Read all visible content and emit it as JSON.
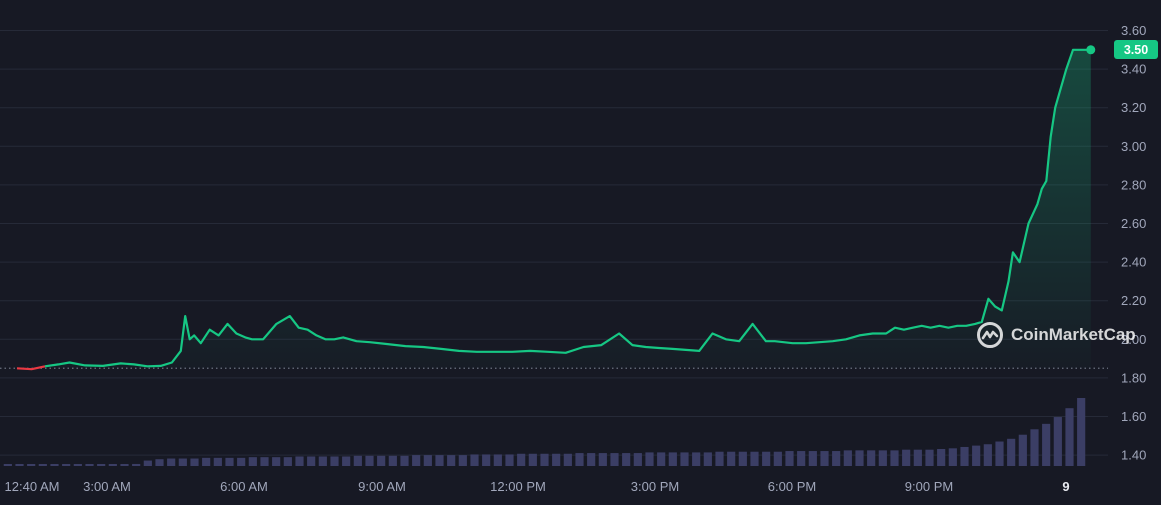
{
  "chart_data": {
    "type": "line",
    "title": "",
    "xlabel": "",
    "ylabel": "",
    "ylim": [
      1.37,
      3.65
    ],
    "y_ticks": [
      "3.60",
      "3.40",
      "3.20",
      "3.00",
      "2.80",
      "2.60",
      "2.40",
      "2.20",
      "2.00",
      "1.80",
      "1.60",
      "1.40"
    ],
    "x_ticks": [
      "12:40 AM",
      "3:00 AM",
      "6:00 AM",
      "9:00 AM",
      "12:00 PM",
      "3:00 PM",
      "6:00 PM",
      "9:00 PM",
      "9"
    ],
    "grid": true,
    "baseline": 1.85,
    "current_price_label": "3.50",
    "series": [
      {
        "line_color_up": "#16c784",
        "line_color_down": "#ea3943",
        "x_hours": [
          0.67,
          1.0,
          1.3,
          1.6,
          1.85,
          2.2,
          2.6,
          3.0,
          3.3,
          3.6,
          3.9,
          4.15,
          4.35,
          4.45,
          4.55,
          4.65,
          4.8,
          5.0,
          5.2,
          5.4,
          5.6,
          5.8,
          5.95,
          6.2,
          6.5,
          6.8,
          7.0,
          7.2,
          7.4,
          7.6,
          7.8,
          8.0,
          8.3,
          8.6,
          9.0,
          9.4,
          9.8,
          10.2,
          10.6,
          11.0,
          11.4,
          11.8,
          12.2,
          12.6,
          13.0,
          13.4,
          13.8,
          14.2,
          14.5,
          14.8,
          15.1,
          15.4,
          15.7,
          16.0,
          16.3,
          16.6,
          16.9,
          17.2,
          17.5,
          17.7,
          17.9,
          18.1,
          18.4,
          18.7,
          19.0,
          19.3,
          19.6,
          19.9,
          20.2,
          20.4,
          20.6,
          20.8,
          21.0,
          21.2,
          21.4,
          21.6,
          21.8,
          22.0,
          22.2,
          22.35,
          22.5,
          22.65,
          22.8,
          22.95,
          23.05,
          23.2,
          23.4,
          23.6,
          23.7,
          23.8,
          23.9,
          24.0,
          24.1,
          24.25,
          24.4,
          24.55,
          24.7,
          24.8
        ],
        "values": [
          1.85,
          1.845,
          1.86,
          1.87,
          1.88,
          1.865,
          1.862,
          1.875,
          1.87,
          1.86,
          1.862,
          1.88,
          1.94,
          2.12,
          2.0,
          2.02,
          1.98,
          2.05,
          2.02,
          2.08,
          2.03,
          2.01,
          2.0,
          2.0,
          2.08,
          2.12,
          2.06,
          2.05,
          2.02,
          2.0,
          2.0,
          2.01,
          1.99,
          1.985,
          1.975,
          1.965,
          1.96,
          1.95,
          1.94,
          1.935,
          1.935,
          1.935,
          1.94,
          1.935,
          1.93,
          1.96,
          1.97,
          2.03,
          1.97,
          1.96,
          1.955,
          1.95,
          1.945,
          1.94,
          2.03,
          2.0,
          1.99,
          2.08,
          1.99,
          1.99,
          1.985,
          1.98,
          1.98,
          1.985,
          1.99,
          2.0,
          2.02,
          2.03,
          2.03,
          2.06,
          2.05,
          2.06,
          2.07,
          2.06,
          2.07,
          2.06,
          2.07,
          2.07,
          2.08,
          2.09,
          2.21,
          2.17,
          2.15,
          2.3,
          2.45,
          2.4,
          2.6,
          2.7,
          2.78,
          2.82,
          3.05,
          3.2,
          3.28,
          3.4,
          3.5,
          3.5,
          3.5,
          3.5
        ],
        "volume_levels": [
          0.02,
          0.02,
          0.02,
          0.02,
          0.02,
          0.02,
          0.02,
          0.02,
          0.02,
          0.02,
          0.02,
          0.03,
          0.08,
          0.1,
          0.11,
          0.11,
          0.11,
          0.12,
          0.12,
          0.12,
          0.12,
          0.13,
          0.13,
          0.13,
          0.13,
          0.14,
          0.14,
          0.14,
          0.14,
          0.14,
          0.15,
          0.15,
          0.15,
          0.15,
          0.15,
          0.16,
          0.16,
          0.16,
          0.16,
          0.16,
          0.17,
          0.17,
          0.17,
          0.17,
          0.18,
          0.18,
          0.18,
          0.18,
          0.18,
          0.19,
          0.19,
          0.19,
          0.19,
          0.19,
          0.19,
          0.2,
          0.2,
          0.2,
          0.2,
          0.2,
          0.2,
          0.21,
          0.21,
          0.21,
          0.21,
          0.21,
          0.21,
          0.22,
          0.22,
          0.22,
          0.22,
          0.22,
          0.23,
          0.23,
          0.23,
          0.23,
          0.23,
          0.24,
          0.24,
          0.24,
          0.25,
          0.26,
          0.28,
          0.3,
          0.32,
          0.36,
          0.4,
          0.46,
          0.54,
          0.62,
          0.72,
          0.85,
          1.0
        ]
      }
    ]
  },
  "watermark": {
    "text": "CoinMarketCap",
    "icon": "coinmarketcap-logo-icon"
  },
  "colors": {
    "background": "#171924",
    "grid": "#262a38",
    "axis_text": "#a1a7bb",
    "up": "#16c784",
    "down": "#ea3943",
    "volume": "#3b3e65"
  }
}
